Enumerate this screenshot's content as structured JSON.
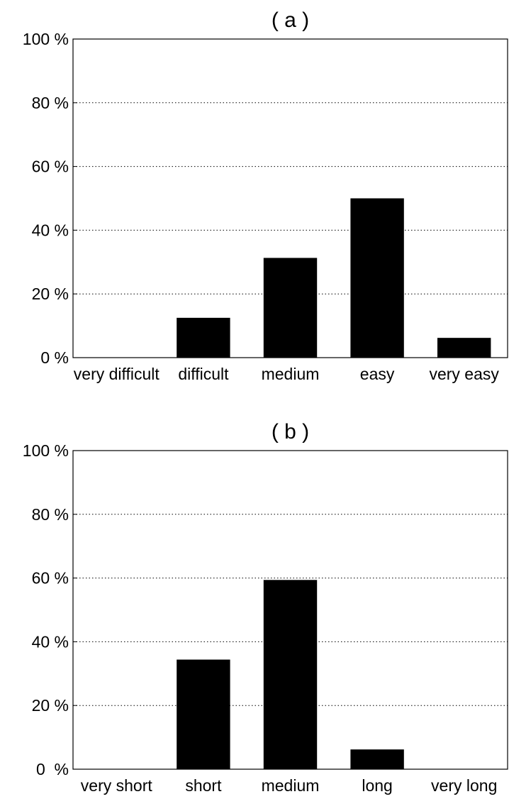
{
  "chart_data": [
    {
      "type": "bar",
      "title": "( a )",
      "categories": [
        "very difficult",
        "difficult",
        "medium",
        "easy",
        "very easy"
      ],
      "values": [
        0,
        12.5,
        31.3,
        50,
        6.2
      ],
      "ylim": [
        0,
        100
      ],
      "yticks": [
        0,
        20,
        40,
        60,
        80,
        100
      ],
      "ytick_labels": [
        "0 %",
        "20 %",
        "40 %",
        "60 %",
        "80 %",
        "100 %"
      ],
      "grid": true,
      "bar_color": "#000000"
    },
    {
      "type": "bar",
      "title": "( b )",
      "categories": [
        "very short",
        "short",
        "medium",
        "long",
        "very long"
      ],
      "values": [
        0,
        34.4,
        59.4,
        6.2,
        0
      ],
      "ylim": [
        0,
        100
      ],
      "yticks": [
        0,
        20,
        40,
        60,
        80,
        100
      ],
      "ytick_labels": [
        "0  %",
        "20 %",
        "40 %",
        "60 %",
        "80 %",
        "100 %"
      ],
      "grid": true,
      "bar_color": "#000000"
    }
  ]
}
